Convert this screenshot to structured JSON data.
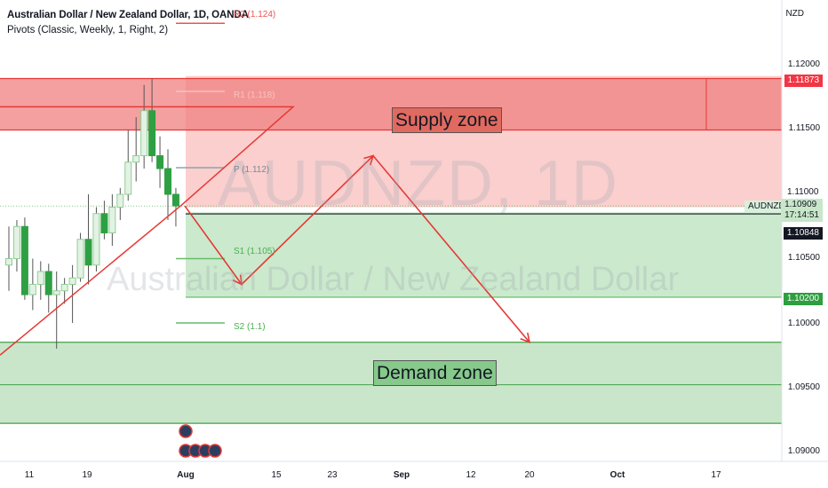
{
  "header": {
    "title": "Australian Dollar / New Zealand Dollar, 1D, OANDA",
    "indicator": "Pivots (Classic, Weekly, 1, Right, 2)",
    "currency": "NZD"
  },
  "watermark": {
    "symbol": "AUDNZD, 1D",
    "name": "Australian Dollar / New Zealand Dollar"
  },
  "pivots": {
    "r2": "R2 (1.124)",
    "r1": "R1 (1.118)",
    "p": "P (1.112)",
    "s1": "S1 (1.105)",
    "s2": "S2 (1.1)"
  },
  "zones": {
    "supply_label": "Supply zone",
    "demand_label": "Demand zone"
  },
  "price_axis": {
    "ticks": [
      "1.12000",
      "1.11500",
      "1.11000",
      "1.10500",
      "1.10000",
      "1.09500",
      "1.09000"
    ],
    "tag_upper": "1.11873",
    "tag_symbol": "AUDNZD",
    "tag_price": "1.10909",
    "tag_timer": "17:14:51",
    "tag_line": "1.10848",
    "tag_lower": "1.10200"
  },
  "time_axis": {
    "ticks": [
      "11",
      "19",
      "Aug",
      "15",
      "23",
      "Sep",
      "12",
      "20",
      "Oct",
      "17"
    ],
    "bold": [
      "Aug",
      "Sep",
      "Oct"
    ]
  },
  "chart_data": {
    "type": "candlestick",
    "symbol": "AUDNZD",
    "timeframe": "1D",
    "ylim": [
      1.0895,
      1.1235
    ],
    "candles": [
      {
        "o": 1.1045,
        "h": 1.1075,
        "l": 1.1025,
        "c": 1.105
      },
      {
        "o": 1.105,
        "h": 1.108,
        "l": 1.104,
        "c": 1.1075
      },
      {
        "o": 1.1075,
        "h": 1.1082,
        "l": 1.1018,
        "c": 1.1022
      },
      {
        "o": 1.1022,
        "h": 1.105,
        "l": 1.101,
        "c": 1.103
      },
      {
        "o": 1.103,
        "h": 1.1048,
        "l": 1.1018,
        "c": 1.104
      },
      {
        "o": 1.104,
        "h": 1.1046,
        "l": 1.1008,
        "c": 1.1022
      },
      {
        "o": 1.1022,
        "h": 1.104,
        "l": 1.098,
        "c": 1.1025
      },
      {
        "o": 1.1025,
        "h": 1.1035,
        "l": 1.1015,
        "c": 1.103
      },
      {
        "o": 1.103,
        "h": 1.1045,
        "l": 1.1,
        "c": 1.1035
      },
      {
        "o": 1.1035,
        "h": 1.107,
        "l": 1.1032,
        "c": 1.1065
      },
      {
        "o": 1.1065,
        "h": 1.11,
        "l": 1.103,
        "c": 1.1045
      },
      {
        "o": 1.1045,
        "h": 1.109,
        "l": 1.104,
        "c": 1.1085
      },
      {
        "o": 1.1085,
        "h": 1.1095,
        "l": 1.1065,
        "c": 1.107
      },
      {
        "o": 1.107,
        "h": 1.11,
        "l": 1.106,
        "c": 1.109
      },
      {
        "o": 1.109,
        "h": 1.1105,
        "l": 1.108,
        "c": 1.11
      },
      {
        "o": 1.11,
        "h": 1.115,
        "l": 1.1095,
        "c": 1.1125
      },
      {
        "o": 1.1125,
        "h": 1.116,
        "l": 1.111,
        "c": 1.113
      },
      {
        "o": 1.113,
        "h": 1.1185,
        "l": 1.112,
        "c": 1.1165
      },
      {
        "o": 1.1165,
        "h": 1.119,
        "l": 1.1125,
        "c": 1.113
      },
      {
        "o": 1.113,
        "h": 1.1145,
        "l": 1.1105,
        "c": 1.112
      },
      {
        "o": 1.112,
        "h": 1.1135,
        "l": 1.108,
        "c": 1.11
      },
      {
        "o": 1.11,
        "h": 1.1105,
        "l": 1.1075,
        "c": 1.1091
      }
    ],
    "levels": {
      "supply_zone": [
        1.115,
        1.119
      ],
      "demand_zone": [
        1.0922,
        1.0985
      ],
      "upper_shade": [
        1.109,
        1.1192
      ],
      "lower_shade": [
        1.102,
        1.1086
      ],
      "current_price": 1.10909,
      "line_price": 1.10848,
      "pivot_R1": 1.118,
      "pivot_P": 1.112,
      "pivot_S1": 1.105,
      "pivot_S2": 1.1
    },
    "projected_path": [
      1.1091,
      1.103,
      1.113,
      1.0985
    ]
  }
}
